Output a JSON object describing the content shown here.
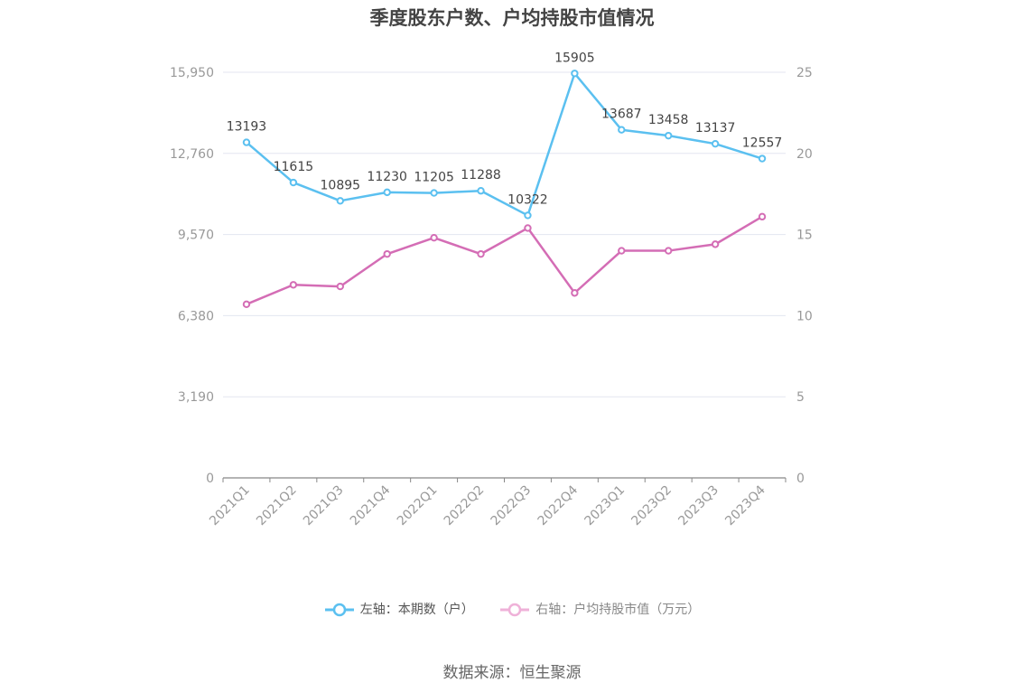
{
  "chart_data": {
    "type": "line",
    "title": "季度股东户数、户均持股市值情况",
    "categories": [
      "2021Q1",
      "2021Q2",
      "2021Q3",
      "2021Q4",
      "2022Q1",
      "2022Q2",
      "2022Q3",
      "2022Q4",
      "2023Q1",
      "2023Q2",
      "2023Q3",
      "2023Q4"
    ],
    "y_left": {
      "ticks": [
        "0",
        "3,190",
        "6,380",
        "9,570",
        "12,760",
        "15,950"
      ],
      "min": 0,
      "max": 15950
    },
    "y_right": {
      "ticks": [
        "0",
        "5",
        "10",
        "15",
        "20",
        "25"
      ],
      "min": 0,
      "max": 25
    },
    "series": [
      {
        "name": "左轴：本期数（户）",
        "axis": "left",
        "color": "#5bc0f0",
        "values": [
          13193,
          11615,
          10895,
          11230,
          11205,
          11288,
          10322,
          15905,
          13687,
          13458,
          13137,
          12557
        ],
        "labels": [
          "13193",
          "11615",
          "10895",
          "11230",
          "11205",
          "11288",
          "10322",
          "15905",
          "13687",
          "13458",
          "13137",
          "12557"
        ]
      },
      {
        "name": "右轴：户均持股市值（万元）",
        "axis": "right",
        "color": "#d46db5",
        "values": [
          10.7,
          11.9,
          11.8,
          13.8,
          14.8,
          13.8,
          15.4,
          11.4,
          14.0,
          14.0,
          14.4,
          16.1
        ]
      }
    ],
    "grid": true,
    "legend_position": "bottom"
  },
  "source": "数据来源：恒生聚源"
}
